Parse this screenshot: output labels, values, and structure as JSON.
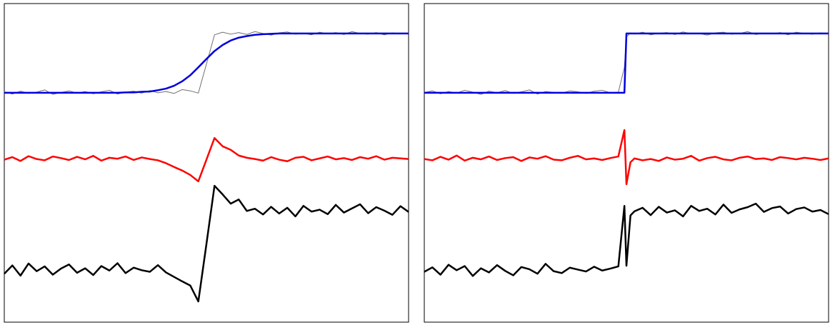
{
  "chart_data": [
    {
      "type": "line",
      "xlim": [
        0,
        100
      ],
      "ylim": [
        0,
        100
      ],
      "x": [
        0,
        2,
        4,
        6,
        8,
        10,
        12,
        14,
        16,
        18,
        20,
        22,
        24,
        26,
        28,
        30,
        32,
        34,
        36,
        38,
        40,
        42,
        44,
        46,
        48,
        50,
        52,
        54,
        56,
        58,
        60,
        62,
        64,
        66,
        68,
        70,
        72,
        74,
        76,
        78,
        80,
        82,
        84,
        86,
        88,
        90,
        92,
        94,
        96,
        98,
        100
      ],
      "series": [
        {
          "color": "#707070",
          "width": 1,
          "values": [
            72.3,
            71.6,
            72.5,
            71.8,
            72.2,
            72.9,
            71.5,
            72.1,
            72.6,
            71.9,
            72.4,
            71.7,
            72.3,
            72.8,
            71.6,
            72.2,
            72.5,
            71.9,
            72.7,
            72.0,
            72.4,
            71.8,
            73.0,
            72.6,
            71.9,
            81.0,
            90.2,
            91.0,
            90.4,
            90.9,
            90.3,
            91.2,
            90.6,
            90.1,
            90.8,
            91.1,
            90.4,
            90.7,
            90.2,
            91.0,
            90.5,
            90.9,
            90.3,
            91.2,
            90.6,
            90.4,
            90.9,
            90.2,
            90.8,
            90.5,
            90.6
          ]
        },
        {
          "color": "#0000dd",
          "width": 2.5,
          "values": [
            72.0,
            72.0,
            72.0,
            72.0,
            72.0,
            72.0,
            72.0,
            72.0,
            72.0,
            72.0,
            72.0,
            72.0,
            72.0,
            72.0,
            72.0,
            72.1,
            72.1,
            72.3,
            72.4,
            72.8,
            73.3,
            74.2,
            75.6,
            77.5,
            80.0,
            82.6,
            85.1,
            87.0,
            88.4,
            89.3,
            89.8,
            90.2,
            90.4,
            90.5,
            90.6,
            90.6,
            90.6,
            90.6,
            90.6,
            90.6,
            90.6,
            90.6,
            90.6,
            90.6,
            90.6,
            90.6,
            90.6,
            90.6,
            90.6,
            90.6,
            90.6
          ]
        },
        {
          "color": "#ff0000",
          "width": 2.5,
          "values": [
            51.0,
            51.8,
            50.6,
            52.1,
            51.2,
            50.8,
            52.0,
            51.5,
            50.9,
            51.9,
            51.1,
            52.2,
            50.7,
            51.6,
            51.3,
            52.0,
            50.9,
            51.7,
            51.2,
            50.8,
            49.9,
            48.7,
            47.6,
            46.2,
            44.2,
            51.0,
            57.8,
            55.2,
            54.1,
            52.3,
            51.6,
            51.2,
            50.7,
            51.8,
            51.0,
            50.5,
            51.6,
            51.9,
            50.8,
            51.4,
            52.0,
            51.1,
            51.5,
            50.9,
            51.8,
            51.3,
            52.1,
            51.0,
            51.6,
            51.4,
            51.2
          ]
        },
        {
          "color": "#000000",
          "width": 2.5,
          "values": [
            15.2,
            17.8,
            14.6,
            18.4,
            16.0,
            17.5,
            14.9,
            16.8,
            18.1,
            15.5,
            16.9,
            14.8,
            17.6,
            16.2,
            18.5,
            15.4,
            17.1,
            16.3,
            15.8,
            17.9,
            15.6,
            14.2,
            12.8,
            11.5,
            6.5,
            24.5,
            42.8,
            40.1,
            37.2,
            38.5,
            34.9,
            35.6,
            33.8,
            36.2,
            34.1,
            35.9,
            33.2,
            36.5,
            34.7,
            35.3,
            33.9,
            36.8,
            34.4,
            35.7,
            37.0,
            34.2,
            36.1,
            35.0,
            33.7,
            36.4,
            34.6
          ]
        }
      ]
    },
    {
      "type": "line",
      "xlim": [
        0,
        100
      ],
      "ylim": [
        0,
        100
      ],
      "x": [
        0,
        2,
        4,
        6,
        8,
        10,
        12,
        14,
        16,
        18,
        20,
        22,
        24,
        26,
        28,
        30,
        32,
        34,
        36,
        38,
        40,
        42,
        44,
        46,
        48,
        49.5,
        50,
        51,
        52,
        54,
        56,
        58,
        60,
        62,
        64,
        66,
        68,
        70,
        72,
        74,
        76,
        78,
        80,
        82,
        84,
        86,
        88,
        90,
        92,
        94,
        96,
        98,
        100
      ],
      "series": [
        {
          "color": "#707070",
          "width": 1,
          "values": [
            72.1,
            72.6,
            71.7,
            72.4,
            71.9,
            72.8,
            72.2,
            71.5,
            72.5,
            72.0,
            72.7,
            71.8,
            72.3,
            72.9,
            71.6,
            72.4,
            72.1,
            71.9,
            72.6,
            72.3,
            71.8,
            72.5,
            72.8,
            72.0,
            72.2,
            80.0,
            89.5,
            90.8,
            90.4,
            91.0,
            90.2,
            90.7,
            90.9,
            90.3,
            91.1,
            90.5,
            90.6,
            90.1,
            90.8,
            91.0,
            90.4,
            90.6,
            91.2,
            90.3,
            90.7,
            90.5,
            90.9,
            90.2,
            91.0,
            90.6,
            90.4,
            90.8,
            90.5
          ]
        },
        {
          "color": "#0000dd",
          "width": 2.5,
          "values": [
            72.0,
            72.0,
            72.0,
            72.0,
            72.0,
            72.0,
            72.0,
            72.0,
            72.0,
            72.0,
            72.0,
            72.0,
            72.0,
            72.0,
            72.0,
            72.0,
            72.0,
            72.0,
            72.0,
            72.0,
            72.0,
            72.0,
            72.0,
            72.0,
            72.0,
            72.0,
            90.6,
            90.6,
            90.6,
            90.6,
            90.6,
            90.6,
            90.6,
            90.6,
            90.6,
            90.6,
            90.6,
            90.6,
            90.6,
            90.6,
            90.6,
            90.6,
            90.6,
            90.6,
            90.6,
            90.6,
            90.6,
            90.6,
            90.6,
            90.6,
            90.6,
            90.6,
            90.6
          ]
        },
        {
          "color": "#ff0000",
          "width": 2.5,
          "values": [
            51.2,
            50.8,
            51.9,
            51.0,
            52.3,
            50.7,
            51.6,
            51.1,
            52.0,
            50.9,
            51.5,
            51.8,
            50.6,
            51.7,
            51.3,
            52.1,
            51.0,
            50.8,
            51.6,
            52.2,
            51.1,
            51.4,
            50.9,
            51.5,
            52.0,
            60.3,
            43.3,
            50.2,
            51.4,
            50.8,
            51.2,
            50.6,
            51.7,
            51.0,
            51.3,
            52.2,
            50.7,
            51.5,
            51.9,
            51.1,
            50.8,
            51.6,
            52.0,
            51.2,
            51.4,
            50.9,
            51.8,
            51.5,
            51.1,
            51.6,
            51.3,
            50.9,
            51.4
          ]
        },
        {
          "color": "#000000",
          "width": 2.5,
          "values": [
            15.8,
            17.2,
            14.9,
            18.0,
            16.3,
            17.6,
            14.5,
            16.9,
            15.6,
            17.9,
            16.1,
            14.7,
            17.3,
            16.6,
            15.2,
            18.3,
            16.0,
            15.4,
            17.1,
            16.5,
            15.9,
            17.4,
            16.2,
            16.8,
            17.5,
            36.5,
            17.7,
            33.5,
            34.8,
            35.9,
            33.6,
            36.2,
            34.4,
            35.1,
            33.2,
            36.5,
            34.9,
            35.6,
            33.8,
            36.9,
            34.3,
            35.4,
            36.1,
            37.2,
            34.6,
            35.8,
            36.3,
            34.1,
            35.5,
            36.0,
            34.7,
            35.2,
            33.9
          ]
        }
      ]
    }
  ]
}
